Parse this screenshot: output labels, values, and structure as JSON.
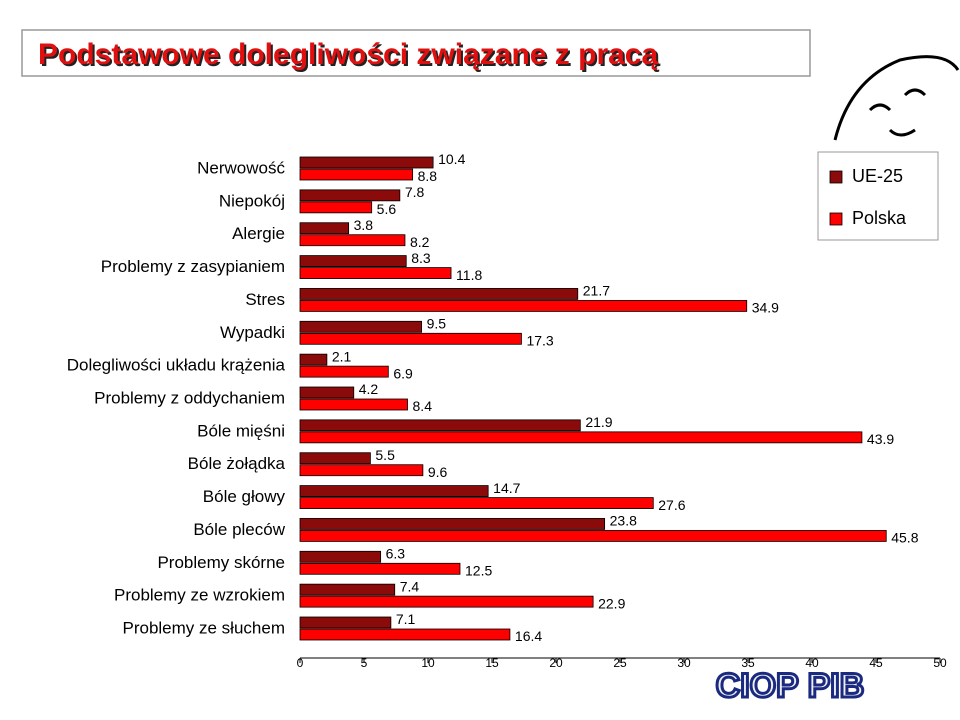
{
  "chart_data": {
    "type": "bar",
    "orientation": "horizontal",
    "title": "Podstawowe dolegliwości związane z pracą",
    "categories": [
      "Nerwowość",
      "Niepokój",
      "Alergie",
      "Problemy z zasypianiem",
      "Stres",
      "Wypadki",
      "Dolegliwości układu krążenia",
      "Problemy z oddychaniem",
      "Bóle mięśni",
      "Bóle żołądka",
      "Bóle głowy",
      "Bóle pleców",
      "Problemy skórne",
      "Problemy ze wzrokiem",
      "Problemy ze słuchem"
    ],
    "series": [
      {
        "name": "UE-25",
        "color": "#8b0a0a",
        "values": [
          10.4,
          7.8,
          3.8,
          8.3,
          21.7,
          9.5,
          2.1,
          4.2,
          21.9,
          5.5,
          14.7,
          23.8,
          6.3,
          7.4,
          7.1
        ]
      },
      {
        "name": "Polska",
        "color": "#ff0000",
        "values": [
          8.8,
          5.6,
          8.2,
          11.8,
          34.9,
          17.3,
          6.9,
          8.4,
          43.9,
          9.6,
          27.6,
          45.8,
          12.5,
          22.9,
          16.4
        ]
      }
    ],
    "xlim": [
      0,
      50
    ],
    "xticks": [
      0,
      5,
      10,
      15,
      20,
      25,
      30,
      35,
      40,
      45,
      50
    ],
    "legend": "upper right",
    "grid": false,
    "logo": "CIOP PIB"
  }
}
